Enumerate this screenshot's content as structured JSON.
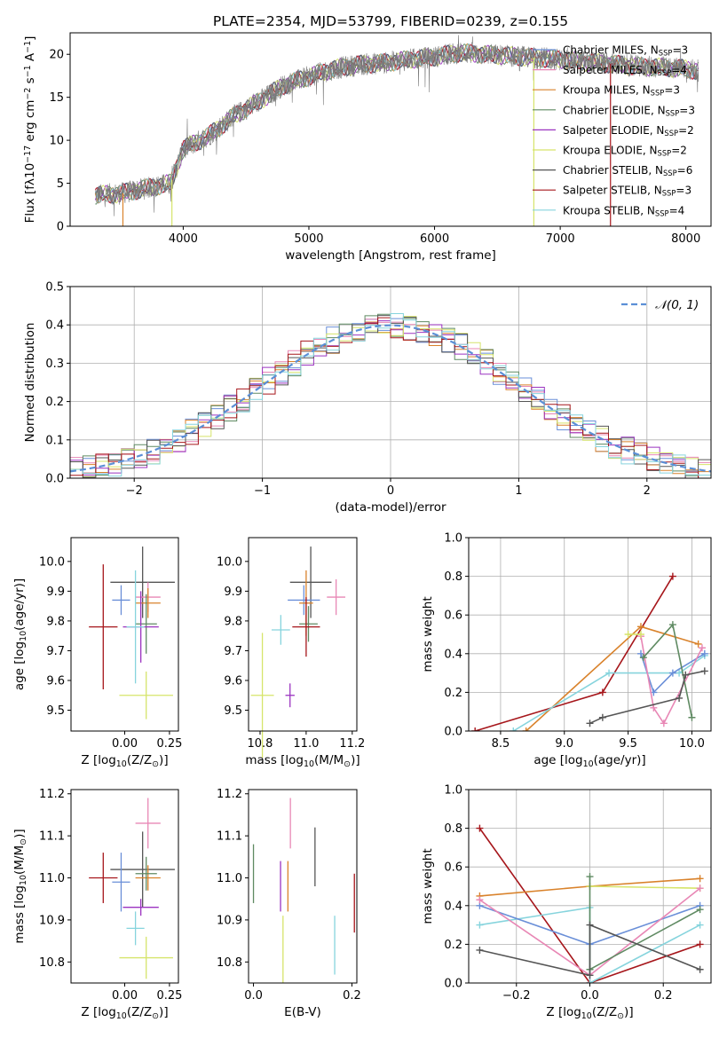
{
  "figure_title": "PLATE=2354, MJD=53799, FIBERID=0239, z=0.155",
  "colors": {
    "Chabrier MILES": "#6a8fd8",
    "Salpeter MILES": "#e887b5",
    "Kroupa MILES": "#d9822b",
    "Chabrier ELODIE": "#5f8a62",
    "Salpeter ELODIE": "#9b33c0",
    "Kroupa ELODIE": "#d6e46a",
    "Chabrier STELIB": "#555555",
    "Salpeter STELIB": "#a6161b",
    "Kroupa STELIB": "#86d4dd",
    "data": "#7a7a7a",
    "gaussian": "#5b8fd6"
  },
  "chart_data": [
    {
      "type": "line",
      "panel": "spectrum",
      "xlabel": "wavelength [Angstrom, rest frame]",
      "ylabel": "Flux [fλ10⁻¹⁷ erg cm⁻² s⁻¹ A⁻¹]",
      "xlim": [
        3100,
        8200
      ],
      "ylim": [
        0,
        22.5
      ],
      "xticks": [
        "4000",
        "5000",
        "6000",
        "7000",
        "8000"
      ],
      "yticks": [
        "0",
        "5",
        "10",
        "15",
        "20"
      ],
      "continuum": [
        [
          3300,
          3.6
        ],
        [
          3500,
          3.8
        ],
        [
          3700,
          4.4
        ],
        [
          3900,
          5.0
        ],
        [
          4000,
          9.0
        ],
        [
          4200,
          10.5
        ],
        [
          4400,
          12.8
        ],
        [
          4600,
          14.5
        ],
        [
          4800,
          16.4
        ],
        [
          5000,
          17.4
        ],
        [
          5200,
          18.3
        ],
        [
          5400,
          18.8
        ],
        [
          5600,
          19.0
        ],
        [
          5800,
          19.4
        ],
        [
          6000,
          19.7
        ],
        [
          6200,
          20.2
        ],
        [
          6400,
          20.0
        ],
        [
          6600,
          19.8
        ],
        [
          6800,
          19.6
        ],
        [
          7000,
          19.4
        ],
        [
          7200,
          19.1
        ],
        [
          7400,
          18.9
        ],
        [
          7600,
          18.6
        ],
        [
          7800,
          18.5
        ],
        [
          8000,
          18.3
        ],
        [
          8100,
          18.1
        ]
      ],
      "legend": [
        {
          "label": "Chabrier MILES, N",
          "sub": "SSP",
          "value": "=3"
        },
        {
          "label": "Salpeter MILES, N",
          "sub": "SSP",
          "value": "=4"
        },
        {
          "label": "Kroupa MILES, N",
          "sub": "SSP",
          "value": "=3"
        },
        {
          "label": "Chabrier ELODIE, N",
          "sub": "SSP",
          "value": "=3"
        },
        {
          "label": "Salpeter ELODIE, N",
          "sub": "SSP",
          "value": "=2"
        },
        {
          "label": "Kroupa ELODIE, N",
          "sub": "SSP",
          "value": "=2"
        },
        {
          "label": "Chabrier STELIB, N",
          "sub": "SSP",
          "value": "=6"
        },
        {
          "label": "Salpeter STELIB, N",
          "sub": "SSP",
          "value": "=3"
        },
        {
          "label": "Kroupa STELIB, N",
          "sub": "SSP",
          "value": "=4"
        }
      ]
    },
    {
      "type": "line",
      "panel": "residuals",
      "xlabel": "(data-model)/error",
      "ylabel": "Normed distribution",
      "xlim": [
        -2.5,
        2.5
      ],
      "ylim": [
        0,
        0.5
      ],
      "xticks": [
        "−2",
        "−1",
        "0",
        "1",
        "2"
      ],
      "yticks": [
        "0.0",
        "0.1",
        "0.2",
        "0.3",
        "0.4",
        "0.5"
      ],
      "bin_width": 0.1,
      "legend_label": "𝒩(0, 1)"
    },
    {
      "type": "scatter",
      "panel": "age-vs-Z",
      "xlabel": "Z [log₁₀(Z/Z⊙)]",
      "ylabel": "age  [log₁₀(age/yr)]",
      "xlim": [
        -0.3,
        0.3
      ],
      "ylim": [
        9.43,
        10.08
      ],
      "xticks": [
        "0.00",
        "0.25"
      ],
      "yticks": [
        "9.5",
        "9.6",
        "9.7",
        "9.8",
        "9.9",
        "10.0"
      ],
      "points": [
        {
          "x": 0.1,
          "y": 9.93,
          "xerr": 0.18,
          "yerr": 0.12,
          "color": "Chabrier STELIB"
        },
        {
          "x": -0.02,
          "y": 9.87,
          "xerr": 0.05,
          "yerr": 0.05,
          "color": "Chabrier MILES"
        },
        {
          "x": 0.13,
          "y": 9.88,
          "xerr": 0.07,
          "yerr": 0.05,
          "color": "Salpeter MILES"
        },
        {
          "x": 0.13,
          "y": 9.86,
          "xerr": 0.07,
          "yerr": 0.05,
          "color": "Kroupa MILES"
        },
        {
          "x": 0.12,
          "y": 9.79,
          "xerr": 0.06,
          "yerr": 0.1,
          "color": "Chabrier ELODIE"
        },
        {
          "x": 0.09,
          "y": 9.78,
          "xerr": 0.1,
          "yerr": 0.12,
          "color": "Salpeter ELODIE"
        },
        {
          "x": 0.12,
          "y": 9.55,
          "xerr": 0.15,
          "yerr": 0.08,
          "color": "Kroupa ELODIE"
        },
        {
          "x": -0.12,
          "y": 9.78,
          "xerr": 0.08,
          "yerr": 0.21,
          "color": "Salpeter STELIB"
        },
        {
          "x": 0.06,
          "y": 9.78,
          "xerr": 0.05,
          "yerr": 0.19,
          "color": "Kroupa STELIB"
        }
      ]
    },
    {
      "type": "scatter",
      "panel": "age-vs-mass",
      "xlabel": "mass [log₁₀(M/M⊙)]",
      "ylabel": "",
      "xlim": [
        10.75,
        11.22
      ],
      "ylim": [
        9.43,
        10.08
      ],
      "xticks": [
        "10.8",
        "11.0",
        "11.2"
      ],
      "yticks": [
        "9.5",
        "9.6",
        "9.7",
        "9.8",
        "9.9",
        "10.0"
      ],
      "points": [
        {
          "x": 11.02,
          "y": 9.93,
          "xerr": 0.09,
          "yerr": 0.12,
          "color": "Chabrier STELIB"
        },
        {
          "x": 10.99,
          "y": 9.87,
          "xerr": 0.07,
          "yerr": 0.05,
          "color": "Chabrier MILES"
        },
        {
          "x": 11.13,
          "y": 9.88,
          "xerr": 0.04,
          "yerr": 0.06,
          "color": "Salpeter MILES"
        },
        {
          "x": 11.0,
          "y": 9.86,
          "xerr": 0.03,
          "yerr": 0.11,
          "color": "Kroupa MILES"
        },
        {
          "x": 11.01,
          "y": 9.79,
          "xerr": 0.04,
          "yerr": 0.06,
          "color": "Chabrier ELODIE"
        },
        {
          "x": 10.93,
          "y": 9.55,
          "xerr": 0.02,
          "yerr": 0.04,
          "color": "Salpeter ELODIE"
        },
        {
          "x": 10.81,
          "y": 9.55,
          "xerr": 0.05,
          "yerr": 0.21,
          "color": "Kroupa ELODIE"
        },
        {
          "x": 11.0,
          "y": 9.78,
          "xerr": 0.06,
          "yerr": 0.1,
          "color": "Salpeter STELIB"
        },
        {
          "x": 10.89,
          "y": 9.77,
          "xerr": 0.04,
          "yerr": 0.05,
          "color": "Kroupa STELIB"
        }
      ]
    },
    {
      "type": "line",
      "panel": "mass-weight-vs-age",
      "xlabel": "age  [log₁₀(age/yr)]",
      "ylabel": "mass weight",
      "xlim": [
        8.25,
        10.15
      ],
      "ylim": [
        0,
        1.0
      ],
      "xticks": [
        "8.5",
        "9.0",
        "9.5",
        "10.0"
      ],
      "yticks": [
        "0.0",
        "0.2",
        "0.4",
        "0.6",
        "0.8",
        "1.0"
      ],
      "series": [
        {
          "color": "Salpeter STELIB",
          "x": [
            8.3,
            9.3,
            9.85
          ],
          "y": [
            0.0,
            0.2,
            0.8
          ]
        },
        {
          "color": "Kroupa MILES",
          "x": [
            8.7,
            9.6,
            10.05
          ],
          "y": [
            0.0,
            0.54,
            0.45
          ]
        },
        {
          "color": "Kroupa STELIB",
          "x": [
            8.6,
            9.35,
            9.9,
            10.1
          ],
          "y": [
            0.0,
            0.3,
            0.3,
            0.39
          ]
        },
        {
          "color": "Chabrier MILES",
          "x": [
            9.6,
            9.7,
            9.85,
            10.1
          ],
          "y": [
            0.4,
            0.2,
            0.3,
            0.4
          ]
        },
        {
          "color": "Salpeter MILES",
          "x": [
            9.6,
            9.7,
            9.78,
            10.08
          ],
          "y": [
            0.49,
            0.12,
            0.04,
            0.43
          ]
        },
        {
          "color": "Chabrier ELODIE",
          "x": [
            9.62,
            9.85,
            10.0
          ],
          "y": [
            0.38,
            0.55,
            0.07
          ]
        },
        {
          "color": "Kroupa ELODIE",
          "x": [
            9.5,
            9.6
          ],
          "y": [
            0.5,
            0.5
          ]
        },
        {
          "color": "Chabrier STELIB",
          "x": [
            9.2,
            9.3,
            9.9,
            9.95,
            10.1
          ],
          "y": [
            0.04,
            0.07,
            0.17,
            0.29,
            0.31
          ]
        }
      ]
    },
    {
      "type": "scatter",
      "panel": "mass-vs-Z",
      "xlabel": "Z [log₁₀(Z/Z⊙)]",
      "ylabel": "mass [log₁₀(M/M⊙)]",
      "xlim": [
        -0.3,
        0.3
      ],
      "ylim": [
        10.75,
        11.21
      ],
      "xticks": [
        "0.00",
        "0.25"
      ],
      "yticks": [
        "10.8",
        "10.9",
        "11.0",
        "11.1",
        "11.2"
      ],
      "points": [
        {
          "x": 0.13,
          "y": 11.13,
          "xerr": 0.07,
          "yerr": 0.06,
          "color": "Salpeter MILES"
        },
        {
          "x": 0.1,
          "y": 11.02,
          "xerr": 0.18,
          "yerr": 0.09,
          "color": "Chabrier STELIB"
        },
        {
          "x": -0.02,
          "y": 10.99,
          "xerr": 0.05,
          "yerr": 0.07,
          "color": "Chabrier MILES"
        },
        {
          "x": 0.13,
          "y": 11.0,
          "xerr": 0.07,
          "yerr": 0.03,
          "color": "Kroupa MILES"
        },
        {
          "x": 0.12,
          "y": 11.01,
          "xerr": 0.06,
          "yerr": 0.04,
          "color": "Chabrier ELODIE"
        },
        {
          "x": 0.09,
          "y": 10.93,
          "xerr": 0.1,
          "yerr": 0.02,
          "color": "Salpeter ELODIE"
        },
        {
          "x": 0.12,
          "y": 10.81,
          "xerr": 0.15,
          "yerr": 0.05,
          "color": "Kroupa ELODIE"
        },
        {
          "x": -0.12,
          "y": 11.0,
          "xerr": 0.08,
          "yerr": 0.06,
          "color": "Salpeter STELIB"
        },
        {
          "x": 0.06,
          "y": 10.88,
          "xerr": 0.05,
          "yerr": 0.04,
          "color": "Kroupa STELIB"
        }
      ]
    },
    {
      "type": "scatter",
      "panel": "mass-vs-EBV",
      "xlabel": "E(B-V)",
      "ylabel": "",
      "xlim": [
        -0.01,
        0.21
      ],
      "ylim": [
        10.75,
        11.21
      ],
      "xticks": [
        "0.0",
        "0.2"
      ],
      "yticks": [
        "10.8",
        "10.9",
        "11.0",
        "11.1",
        "11.2"
      ],
      "points": [
        {
          "x": 0.0,
          "y": 11.01,
          "yerr": 0.07,
          "color": "Chabrier ELODIE"
        },
        {
          "x": 0.055,
          "y": 10.98,
          "yerr": 0.06,
          "color": "Salpeter ELODIE"
        },
        {
          "x": 0.06,
          "y": 10.83,
          "yerr": 0.08,
          "color": "Kroupa ELODIE"
        },
        {
          "x": 0.07,
          "y": 10.98,
          "yerr": 0.06,
          "color": "Kroupa MILES"
        },
        {
          "x": 0.075,
          "y": 11.13,
          "yerr": 0.06,
          "color": "Salpeter MILES"
        },
        {
          "x": 0.125,
          "y": 11.05,
          "yerr": 0.07,
          "color": "Chabrier STELIB"
        },
        {
          "x": 0.165,
          "y": 10.84,
          "yerr": 0.07,
          "color": "Kroupa STELIB"
        },
        {
          "x": 0.205,
          "y": 10.94,
          "yerr": 0.07,
          "color": "Salpeter STELIB"
        }
      ]
    },
    {
      "type": "line",
      "panel": "mass-weight-vs-Z",
      "xlabel": "Z [log₁₀(Z/Z⊙)]",
      "ylabel": "mass weight",
      "xlim": [
        -0.33,
        0.33
      ],
      "ylim": [
        0,
        1.0
      ],
      "xticks": [
        "−0.2",
        "0.0",
        "0.2"
      ],
      "yticks": [
        "0.0",
        "0.2",
        "0.4",
        "0.6",
        "0.8",
        "1.0"
      ],
      "series": [
        {
          "color": "Salpeter STELIB",
          "x": [
            -0.3,
            0.0,
            0.3
          ],
          "y": [
            0.8,
            0.0,
            0.2
          ]
        },
        {
          "color": "Kroupa MILES",
          "x": [
            -0.3,
            0.0,
            0.3
          ],
          "y": [
            0.45,
            0.5,
            0.54
          ]
        },
        {
          "color": "Kroupa ELODIE",
          "x": [
            0.0,
            0.3
          ],
          "y": [
            0.5,
            0.49
          ]
        },
        {
          "color": "Kroupa STELIB",
          "x": [
            -0.3,
            0.0,
            0.0,
            0.3
          ],
          "y": [
            0.3,
            0.39,
            0.0,
            0.3
          ]
        },
        {
          "color": "Chabrier MILES",
          "x": [
            -0.3,
            0.0,
            0.3
          ],
          "y": [
            0.4,
            0.2,
            0.4
          ]
        },
        {
          "color": "Salpeter MILES",
          "x": [
            -0.3,
            0.0,
            0.3
          ],
          "y": [
            0.43,
            0.04,
            0.49
          ]
        },
        {
          "color": "Chabrier ELODIE",
          "x": [
            0.0,
            0.0,
            0.3
          ],
          "y": [
            0.55,
            0.07,
            0.38
          ]
        },
        {
          "color": "Chabrier STELIB",
          "x": [
            -0.3,
            0.0,
            0.0,
            0.3
          ],
          "y": [
            0.17,
            0.04,
            0.3,
            0.07
          ]
        }
      ]
    }
  ]
}
